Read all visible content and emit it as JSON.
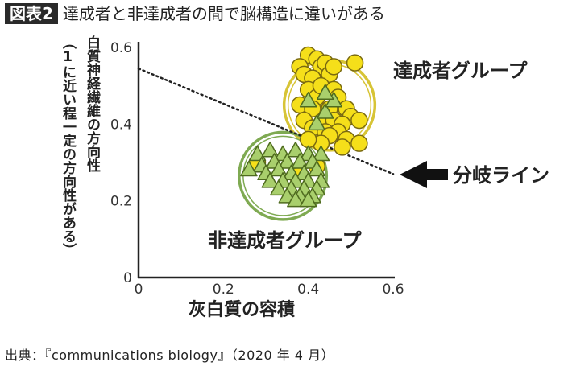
{
  "header": {
    "badge": "図表2",
    "title": "達成者と非達成者の間で脳構造に違いがある"
  },
  "source": "出典：『communications biology』（2020 年 4 月）",
  "colors": {
    "achiever_fill": "#f5df1a",
    "achiever_stroke": "#7a6a10",
    "achiever_ring": "#d7c436",
    "non_achiever_fill": "#a9cf6c",
    "non_achiever_stroke": "#4f6b1f",
    "non_achiever_ring": "#7faa52"
  },
  "chart_data": {
    "type": "scatter",
    "xlabel": "灰白質の容積",
    "ylabel_line1": "白質神経繊維の方向性",
    "ylabel_line2": "（1に近い程一定の方向性がある）",
    "xlim": [
      0,
      0.6
    ],
    "ylim": [
      0,
      0.6
    ],
    "x_ticks": [
      "0",
      "0.2",
      "0.4",
      "0.6"
    ],
    "y_ticks": [
      "0",
      "0.2",
      "0.4",
      "0.6"
    ],
    "series": [
      {
        "name": "達成者グループ",
        "marker": "circle",
        "points": [
          [
            0.4,
            0.58
          ],
          [
            0.42,
            0.57
          ],
          [
            0.43,
            0.55
          ],
          [
            0.44,
            0.56
          ],
          [
            0.38,
            0.55
          ],
          [
            0.39,
            0.53
          ],
          [
            0.41,
            0.52
          ],
          [
            0.45,
            0.53
          ],
          [
            0.46,
            0.55
          ],
          [
            0.51,
            0.56
          ],
          [
            0.4,
            0.49
          ],
          [
            0.42,
            0.47
          ],
          [
            0.43,
            0.5
          ],
          [
            0.46,
            0.49
          ],
          [
            0.47,
            0.47
          ],
          [
            0.38,
            0.45
          ],
          [
            0.41,
            0.44
          ],
          [
            0.45,
            0.44
          ],
          [
            0.49,
            0.44
          ],
          [
            0.5,
            0.42
          ],
          [
            0.39,
            0.41
          ],
          [
            0.43,
            0.4
          ],
          [
            0.46,
            0.41
          ],
          [
            0.48,
            0.4
          ],
          [
            0.41,
            0.39
          ],
          [
            0.44,
            0.38
          ],
          [
            0.47,
            0.38
          ],
          [
            0.52,
            0.41
          ],
          [
            0.45,
            0.37
          ],
          [
            0.49,
            0.36
          ],
          [
            0.43,
            0.35
          ],
          [
            0.48,
            0.34
          ],
          [
            0.52,
            0.35
          ],
          [
            0.4,
            0.36
          ],
          [
            0.28,
            0.3
          ],
          [
            0.37,
            0.27
          ],
          [
            0.42,
            0.29
          ]
        ]
      },
      {
        "name": "非達成者グループ",
        "marker": "triangle",
        "points": [
          [
            0.28,
            0.32
          ],
          [
            0.31,
            0.33
          ],
          [
            0.34,
            0.32
          ],
          [
            0.37,
            0.33
          ],
          [
            0.4,
            0.32
          ],
          [
            0.43,
            0.32
          ],
          [
            0.29,
            0.29
          ],
          [
            0.32,
            0.3
          ],
          [
            0.35,
            0.3
          ],
          [
            0.38,
            0.3
          ],
          [
            0.41,
            0.3
          ],
          [
            0.26,
            0.28
          ],
          [
            0.3,
            0.27
          ],
          [
            0.33,
            0.28
          ],
          [
            0.36,
            0.27
          ],
          [
            0.39,
            0.27
          ],
          [
            0.42,
            0.28
          ],
          [
            0.31,
            0.25
          ],
          [
            0.34,
            0.25
          ],
          [
            0.37,
            0.25
          ],
          [
            0.4,
            0.25
          ],
          [
            0.43,
            0.25
          ],
          [
            0.33,
            0.23
          ],
          [
            0.36,
            0.23
          ],
          [
            0.39,
            0.23
          ],
          [
            0.42,
            0.23
          ],
          [
            0.35,
            0.21
          ],
          [
            0.38,
            0.21
          ],
          [
            0.41,
            0.21
          ],
          [
            0.37,
            0.2
          ],
          [
            0.4,
            0.2
          ],
          [
            0.42,
            0.4
          ],
          [
            0.44,
            0.43
          ],
          [
            0.46,
            0.46
          ],
          [
            0.4,
            0.46
          ],
          [
            0.44,
            0.48
          ]
        ]
      }
    ],
    "divider": {
      "label": "分岐ライン",
      "points": [
        [
          0,
          0.545
        ],
        [
          0.6,
          0.27
        ]
      ]
    },
    "groups": [
      {
        "label": "達成者グループ",
        "center": [
          0.45,
          0.45
        ],
        "radius": 0.107
      },
      {
        "label": "非達成者グループ",
        "center": [
          0.34,
          0.265
        ],
        "radius": 0.103
      }
    ]
  }
}
